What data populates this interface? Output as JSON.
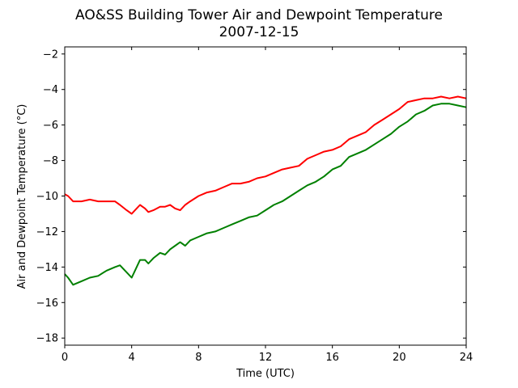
{
  "chart_data": {
    "type": "line",
    "title": "AO&SS Building Tower Air and Dewpoint Temperature",
    "subtitle": "2007-12-15",
    "xlabel": "Time (UTC)",
    "ylabel": "Air and Dewpoint Temperature (°C)",
    "xlim": [
      0,
      24
    ],
    "ylim": [
      -18.4,
      -1.6
    ],
    "xticks": [
      0,
      4,
      8,
      12,
      16,
      20,
      24
    ],
    "yticks": [
      -18,
      -16,
      -14,
      -12,
      -10,
      -8,
      -6,
      -4,
      -2
    ],
    "grid": false,
    "legend": "none",
    "series": [
      {
        "color": "#ff0000",
        "x": [
          0,
          0.2,
          0.5,
          1,
          1.5,
          2,
          2.5,
          3,
          3.3,
          3.7,
          4,
          4.2,
          4.5,
          4.8,
          5,
          5.3,
          5.7,
          6,
          6.3,
          6.6,
          6.9,
          7.2,
          7.5,
          8,
          8.5,
          9,
          9.5,
          10,
          10.5,
          11,
          11.5,
          12,
          12.5,
          13,
          13.5,
          14,
          14.5,
          15,
          15.5,
          16,
          16.5,
          17,
          17.5,
          18,
          18.5,
          19,
          19.5,
          20,
          20.5,
          21,
          21.5,
          22,
          22.5,
          23,
          23.5,
          24
        ],
        "values": [
          -9.9,
          -10.0,
          -10.3,
          -10.3,
          -10.2,
          -10.3,
          -10.3,
          -10.3,
          -10.5,
          -10.8,
          -11.0,
          -10.8,
          -10.5,
          -10.7,
          -10.9,
          -10.8,
          -10.6,
          -10.6,
          -10.5,
          -10.7,
          -10.8,
          -10.5,
          -10.3,
          -10.0,
          -9.8,
          -9.7,
          -9.5,
          -9.3,
          -9.3,
          -9.2,
          -9.0,
          -8.9,
          -8.7,
          -8.5,
          -8.4,
          -8.3,
          -7.9,
          -7.7,
          -7.5,
          -7.4,
          -7.2,
          -6.8,
          -6.6,
          -6.4,
          -6.0,
          -5.7,
          -5.4,
          -5.1,
          -4.7,
          -4.6,
          -4.5,
          -4.5,
          -4.4,
          -4.5,
          -4.4,
          -4.5
        ]
      },
      {
        "color": "#008000",
        "x": [
          0,
          0.2,
          0.5,
          1,
          1.5,
          2,
          2.5,
          3,
          3.3,
          3.7,
          4,
          4.2,
          4.5,
          4.8,
          5,
          5.3,
          5.7,
          6,
          6.3,
          6.6,
          6.9,
          7.2,
          7.5,
          8,
          8.5,
          9,
          9.5,
          10,
          10.5,
          11,
          11.5,
          12,
          12.5,
          13,
          13.5,
          14,
          14.5,
          15,
          15.5,
          16,
          16.5,
          17,
          17.5,
          18,
          18.5,
          19,
          19.5,
          20,
          20.5,
          21,
          21.5,
          22,
          22.5,
          23,
          23.5,
          24
        ],
        "values": [
          -14.4,
          -14.6,
          -15.0,
          -14.8,
          -14.6,
          -14.5,
          -14.2,
          -14.0,
          -13.9,
          -14.3,
          -14.6,
          -14.2,
          -13.6,
          -13.6,
          -13.8,
          -13.5,
          -13.2,
          -13.3,
          -13.0,
          -12.8,
          -12.6,
          -12.8,
          -12.5,
          -12.3,
          -12.1,
          -12.0,
          -11.8,
          -11.6,
          -11.4,
          -11.2,
          -11.1,
          -10.8,
          -10.5,
          -10.3,
          -10.0,
          -9.7,
          -9.4,
          -9.2,
          -8.9,
          -8.5,
          -8.3,
          -7.8,
          -7.6,
          -7.4,
          -7.1,
          -6.8,
          -6.5,
          -6.1,
          -5.8,
          -5.4,
          -5.2,
          -4.9,
          -4.8,
          -4.8,
          -4.9,
          -5.0
        ]
      }
    ]
  }
}
